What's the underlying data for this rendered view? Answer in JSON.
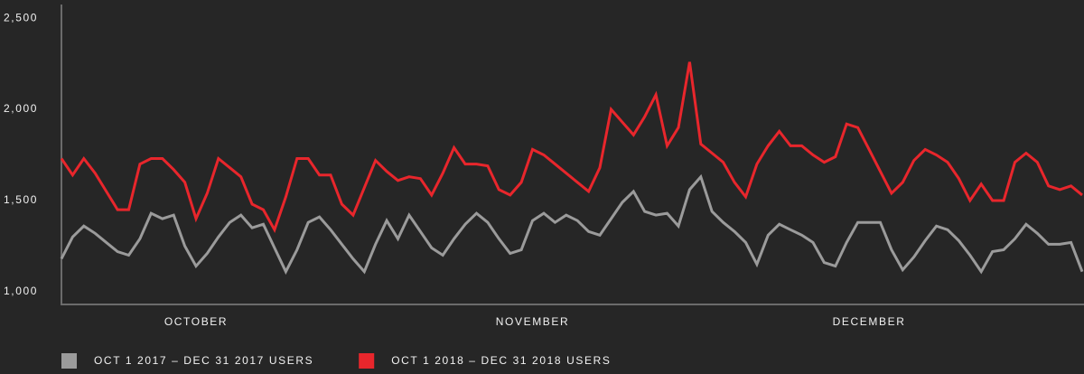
{
  "chart_data": {
    "type": "line",
    "categories": [
      null,
      null,
      null,
      null,
      null,
      null,
      null,
      null,
      null,
      null,
      null,
      null,
      "OCTOBER",
      null,
      null,
      null,
      null,
      null,
      null,
      null,
      null,
      null,
      null,
      null,
      null,
      null,
      null,
      null,
      null,
      null,
      null,
      null,
      null,
      null,
      null,
      null,
      null,
      null,
      null,
      null,
      null,
      null,
      "NOVEMBER",
      null,
      null,
      null,
      null,
      null,
      null,
      null,
      null,
      null,
      null,
      null,
      null,
      null,
      null,
      null,
      null,
      null,
      null,
      null,
      null,
      null,
      null,
      null,
      null,
      null,
      null,
      null,
      null,
      null,
      "DECEMBER",
      null,
      null,
      null,
      null,
      null,
      null,
      null,
      null,
      null,
      null,
      null,
      null,
      null,
      null,
      null,
      null,
      null,
      null,
      null
    ],
    "series": [
      {
        "name": "OCT 1 2017 – DEC 31 2017 USERS",
        "color": "#9b9b9b",
        "values": [
          1180,
          1300,
          1360,
          1320,
          1270,
          1220,
          1200,
          1290,
          1430,
          1400,
          1420,
          1250,
          1140,
          1210,
          1300,
          1380,
          1420,
          1350,
          1370,
          1240,
          1110,
          1230,
          1380,
          1410,
          1340,
          1260,
          1180,
          1110,
          1260,
          1390,
          1290,
          1420,
          1330,
          1240,
          1200,
          1290,
          1370,
          1430,
          1380,
          1290,
          1210,
          1230,
          1390,
          1430,
          1380,
          1420,
          1390,
          1330,
          1310,
          1400,
          1490,
          1550,
          1440,
          1420,
          1430,
          1360,
          1560,
          1630,
          1440,
          1380,
          1330,
          1270,
          1150,
          1310,
          1370,
          1340,
          1310,
          1270,
          1160,
          1140,
          1270,
          1380,
          1380,
          1380,
          1230,
          1120,
          1190,
          1280,
          1360,
          1340,
          1280,
          1200,
          1110,
          1220,
          1230,
          1290,
          1370,
          1320,
          1260,
          1260,
          1270,
          1110
        ]
      },
      {
        "name": "OCT 1 2018 – DEC 31 2018 USERS",
        "color": "#e8262c",
        "values": [
          1730,
          1640,
          1730,
          1650,
          1550,
          1450,
          1450,
          1700,
          1730,
          1730,
          1670,
          1600,
          1400,
          1540,
          1730,
          1680,
          1630,
          1480,
          1450,
          1340,
          1520,
          1730,
          1730,
          1640,
          1640,
          1480,
          1420,
          1570,
          1720,
          1660,
          1610,
          1630,
          1620,
          1530,
          1650,
          1790,
          1700,
          1700,
          1690,
          1560,
          1530,
          1600,
          1780,
          1750,
          1700,
          1650,
          1600,
          1550,
          1680,
          2000,
          1930,
          1860,
          1960,
          2080,
          1800,
          1900,
          2260,
          1810,
          1760,
          1710,
          1600,
          1520,
          1700,
          1800,
          1880,
          1800,
          1800,
          1750,
          1710,
          1740,
          1920,
          1900,
          1780,
          1660,
          1540,
          1600,
          1720,
          1780,
          1750,
          1710,
          1620,
          1500,
          1590,
          1500,
          1500,
          1710,
          1760,
          1710,
          1580,
          1560,
          1580,
          1530
        ]
      }
    ],
    "ylim": [
      930,
      2575
    ],
    "yticks": [
      {
        "value": 1000,
        "label": "1,000"
      },
      {
        "value": 1500,
        "label": "1,500"
      },
      {
        "value": 2000,
        "label": "2,000"
      },
      {
        "value": 2500,
        "label": "2,500"
      }
    ],
    "legend": "bottom"
  }
}
